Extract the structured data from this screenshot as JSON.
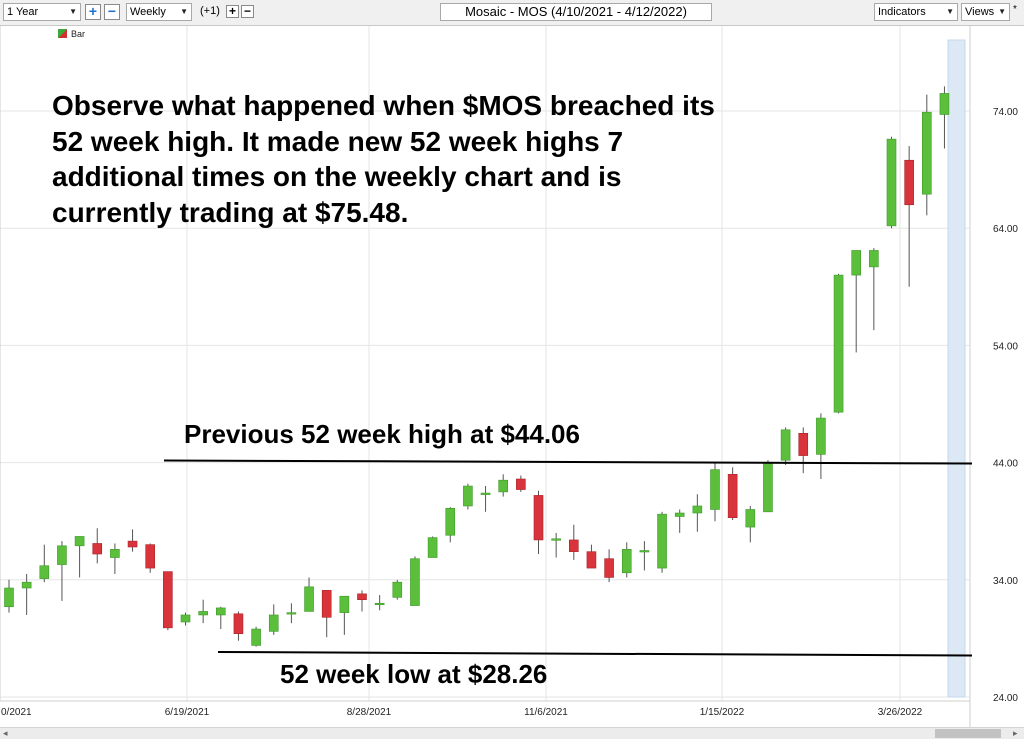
{
  "toolbar": {
    "period_select": "1 Year",
    "interval_select": "Weekly",
    "offset_label": "(+1)",
    "chart_title": "Mosaic - MOS (4/10/2021 - 4/12/2022)",
    "indicators_select": "Indicators",
    "views_select": "Views",
    "zoom_in_icon": "plus-icon",
    "zoom_out_icon": "minus-icon",
    "dropdown_icon": "chevron-down-icon"
  },
  "legend": {
    "label": "Bar"
  },
  "annotations": {
    "headline": [
      "Observe what happened when $MOS breached its",
      "52 week high.  It made new 52 week highs 7",
      "additional times on the weekly chart and is",
      "currently trading at $75.48."
    ],
    "high_line_label": "Previous 52 week high at $44.06",
    "low_line_label": "52 week low at $28.26"
  },
  "colors": {
    "up": "#5bbf3c",
    "down": "#d9343b",
    "wick": "#555555",
    "grid": "#e6e6e6",
    "forecast_band": "#dce9f5"
  },
  "chart_data": {
    "type": "candlestick",
    "title": "Mosaic - MOS (4/10/2021 - 4/12/2022)",
    "ylim": [
      24,
      79
    ],
    "y_ticks": [
      "24.00",
      "34.00",
      "44.00",
      "54.00",
      "64.00",
      "74.00"
    ],
    "x_ticks": [
      "0/2021",
      "6/19/2021",
      "8/28/2021",
      "11/6/2021",
      "1/15/2022",
      "3/26/2022"
    ],
    "levels": {
      "previous_52_week_high": 44.06,
      "52_week_low": 28.26
    },
    "candles": [
      {
        "o": 31.7,
        "h": 34.0,
        "l": 31.2,
        "c": 33.3
      },
      {
        "o": 33.3,
        "h": 34.5,
        "l": 31.0,
        "c": 33.8
      },
      {
        "o": 34.1,
        "h": 37.0,
        "l": 33.8,
        "c": 35.2
      },
      {
        "o": 35.3,
        "h": 37.3,
        "l": 32.2,
        "c": 36.9
      },
      {
        "o": 36.9,
        "h": 37.7,
        "l": 34.2,
        "c": 37.7
      },
      {
        "o": 37.1,
        "h": 38.4,
        "l": 35.4,
        "c": 36.2
      },
      {
        "o": 35.9,
        "h": 37.1,
        "l": 34.5,
        "c": 36.6
      },
      {
        "o": 37.3,
        "h": 38.3,
        "l": 36.4,
        "c": 36.8
      },
      {
        "o": 37.0,
        "h": 37.1,
        "l": 34.6,
        "c": 35.0
      },
      {
        "o": 34.7,
        "h": 34.7,
        "l": 29.7,
        "c": 29.9
      },
      {
        "o": 30.4,
        "h": 31.2,
        "l": 30.1,
        "c": 31.0
      },
      {
        "o": 31.0,
        "h": 32.3,
        "l": 30.3,
        "c": 31.3
      },
      {
        "o": 31.0,
        "h": 31.7,
        "l": 29.8,
        "c": 31.6
      },
      {
        "o": 31.1,
        "h": 31.3,
        "l": 28.8,
        "c": 29.4
      },
      {
        "o": 28.4,
        "h": 30.0,
        "l": 28.3,
        "c": 29.8
      },
      {
        "o": 29.6,
        "h": 31.9,
        "l": 29.3,
        "c": 31.0
      },
      {
        "o": 31.2,
        "h": 32.0,
        "l": 30.3,
        "c": 31.2
      },
      {
        "o": 31.3,
        "h": 34.2,
        "l": 31.3,
        "c": 33.4
      },
      {
        "o": 33.1,
        "h": 33.1,
        "l": 29.1,
        "c": 30.8
      },
      {
        "o": 31.2,
        "h": 32.6,
        "l": 29.3,
        "c": 32.6
      },
      {
        "o": 32.8,
        "h": 33.1,
        "l": 31.3,
        "c": 32.3
      },
      {
        "o": 32.0,
        "h": 32.7,
        "l": 31.4,
        "c": 32.0
      },
      {
        "o": 32.5,
        "h": 34.0,
        "l": 32.3,
        "c": 33.8
      },
      {
        "o": 31.8,
        "h": 36.0,
        "l": 31.8,
        "c": 35.8
      },
      {
        "o": 35.9,
        "h": 37.7,
        "l": 35.9,
        "c": 37.6
      },
      {
        "o": 37.8,
        "h": 40.2,
        "l": 37.2,
        "c": 40.1
      },
      {
        "o": 40.3,
        "h": 42.2,
        "l": 40.0,
        "c": 42.0
      },
      {
        "o": 41.3,
        "h": 42.0,
        "l": 39.8,
        "c": 41.4
      },
      {
        "o": 41.5,
        "h": 43.0,
        "l": 41.1,
        "c": 42.5
      },
      {
        "o": 42.6,
        "h": 42.9,
        "l": 41.5,
        "c": 41.7
      },
      {
        "o": 41.2,
        "h": 41.6,
        "l": 36.2,
        "c": 37.4
      },
      {
        "o": 37.4,
        "h": 38.0,
        "l": 35.9,
        "c": 37.5
      },
      {
        "o": 37.4,
        "h": 38.7,
        "l": 35.7,
        "c": 36.4
      },
      {
        "o": 36.4,
        "h": 37.0,
        "l": 35.0,
        "c": 35.0
      },
      {
        "o": 35.8,
        "h": 36.6,
        "l": 33.8,
        "c": 34.2
      },
      {
        "o": 34.6,
        "h": 37.2,
        "l": 34.2,
        "c": 36.6
      },
      {
        "o": 36.4,
        "h": 37.3,
        "l": 34.8,
        "c": 36.5
      },
      {
        "o": 35.0,
        "h": 39.8,
        "l": 34.6,
        "c": 39.6
      },
      {
        "o": 39.4,
        "h": 40.0,
        "l": 38.0,
        "c": 39.7
      },
      {
        "o": 39.7,
        "h": 41.3,
        "l": 38.1,
        "c": 40.3
      },
      {
        "o": 40.0,
        "h": 44.0,
        "l": 39.0,
        "c": 43.4
      },
      {
        "o": 43.0,
        "h": 43.6,
        "l": 39.1,
        "c": 39.3
      },
      {
        "o": 38.5,
        "h": 40.3,
        "l": 37.2,
        "c": 40.0
      },
      {
        "o": 39.8,
        "h": 44.2,
        "l": 39.8,
        "c": 44.0
      },
      {
        "o": 44.2,
        "h": 47.0,
        "l": 43.8,
        "c": 46.8
      },
      {
        "o": 46.5,
        "h": 47.0,
        "l": 43.1,
        "c": 44.6
      },
      {
        "o": 44.7,
        "h": 48.2,
        "l": 42.6,
        "c": 47.8
      },
      {
        "o": 48.3,
        "h": 60.1,
        "l": 48.2,
        "c": 60.0
      },
      {
        "o": 60.0,
        "h": 62.1,
        "l": 53.4,
        "c": 62.1
      },
      {
        "o": 60.7,
        "h": 62.3,
        "l": 55.3,
        "c": 62.1
      },
      {
        "o": 64.2,
        "h": 71.8,
        "l": 64.0,
        "c": 71.6
      },
      {
        "o": 69.8,
        "h": 71.0,
        "l": 59.0,
        "c": 66.0
      },
      {
        "o": 66.9,
        "h": 75.4,
        "l": 65.1,
        "c": 73.9
      },
      {
        "o": 73.7,
        "h": 76.1,
        "l": 70.8,
        "c": 75.5
      }
    ]
  }
}
